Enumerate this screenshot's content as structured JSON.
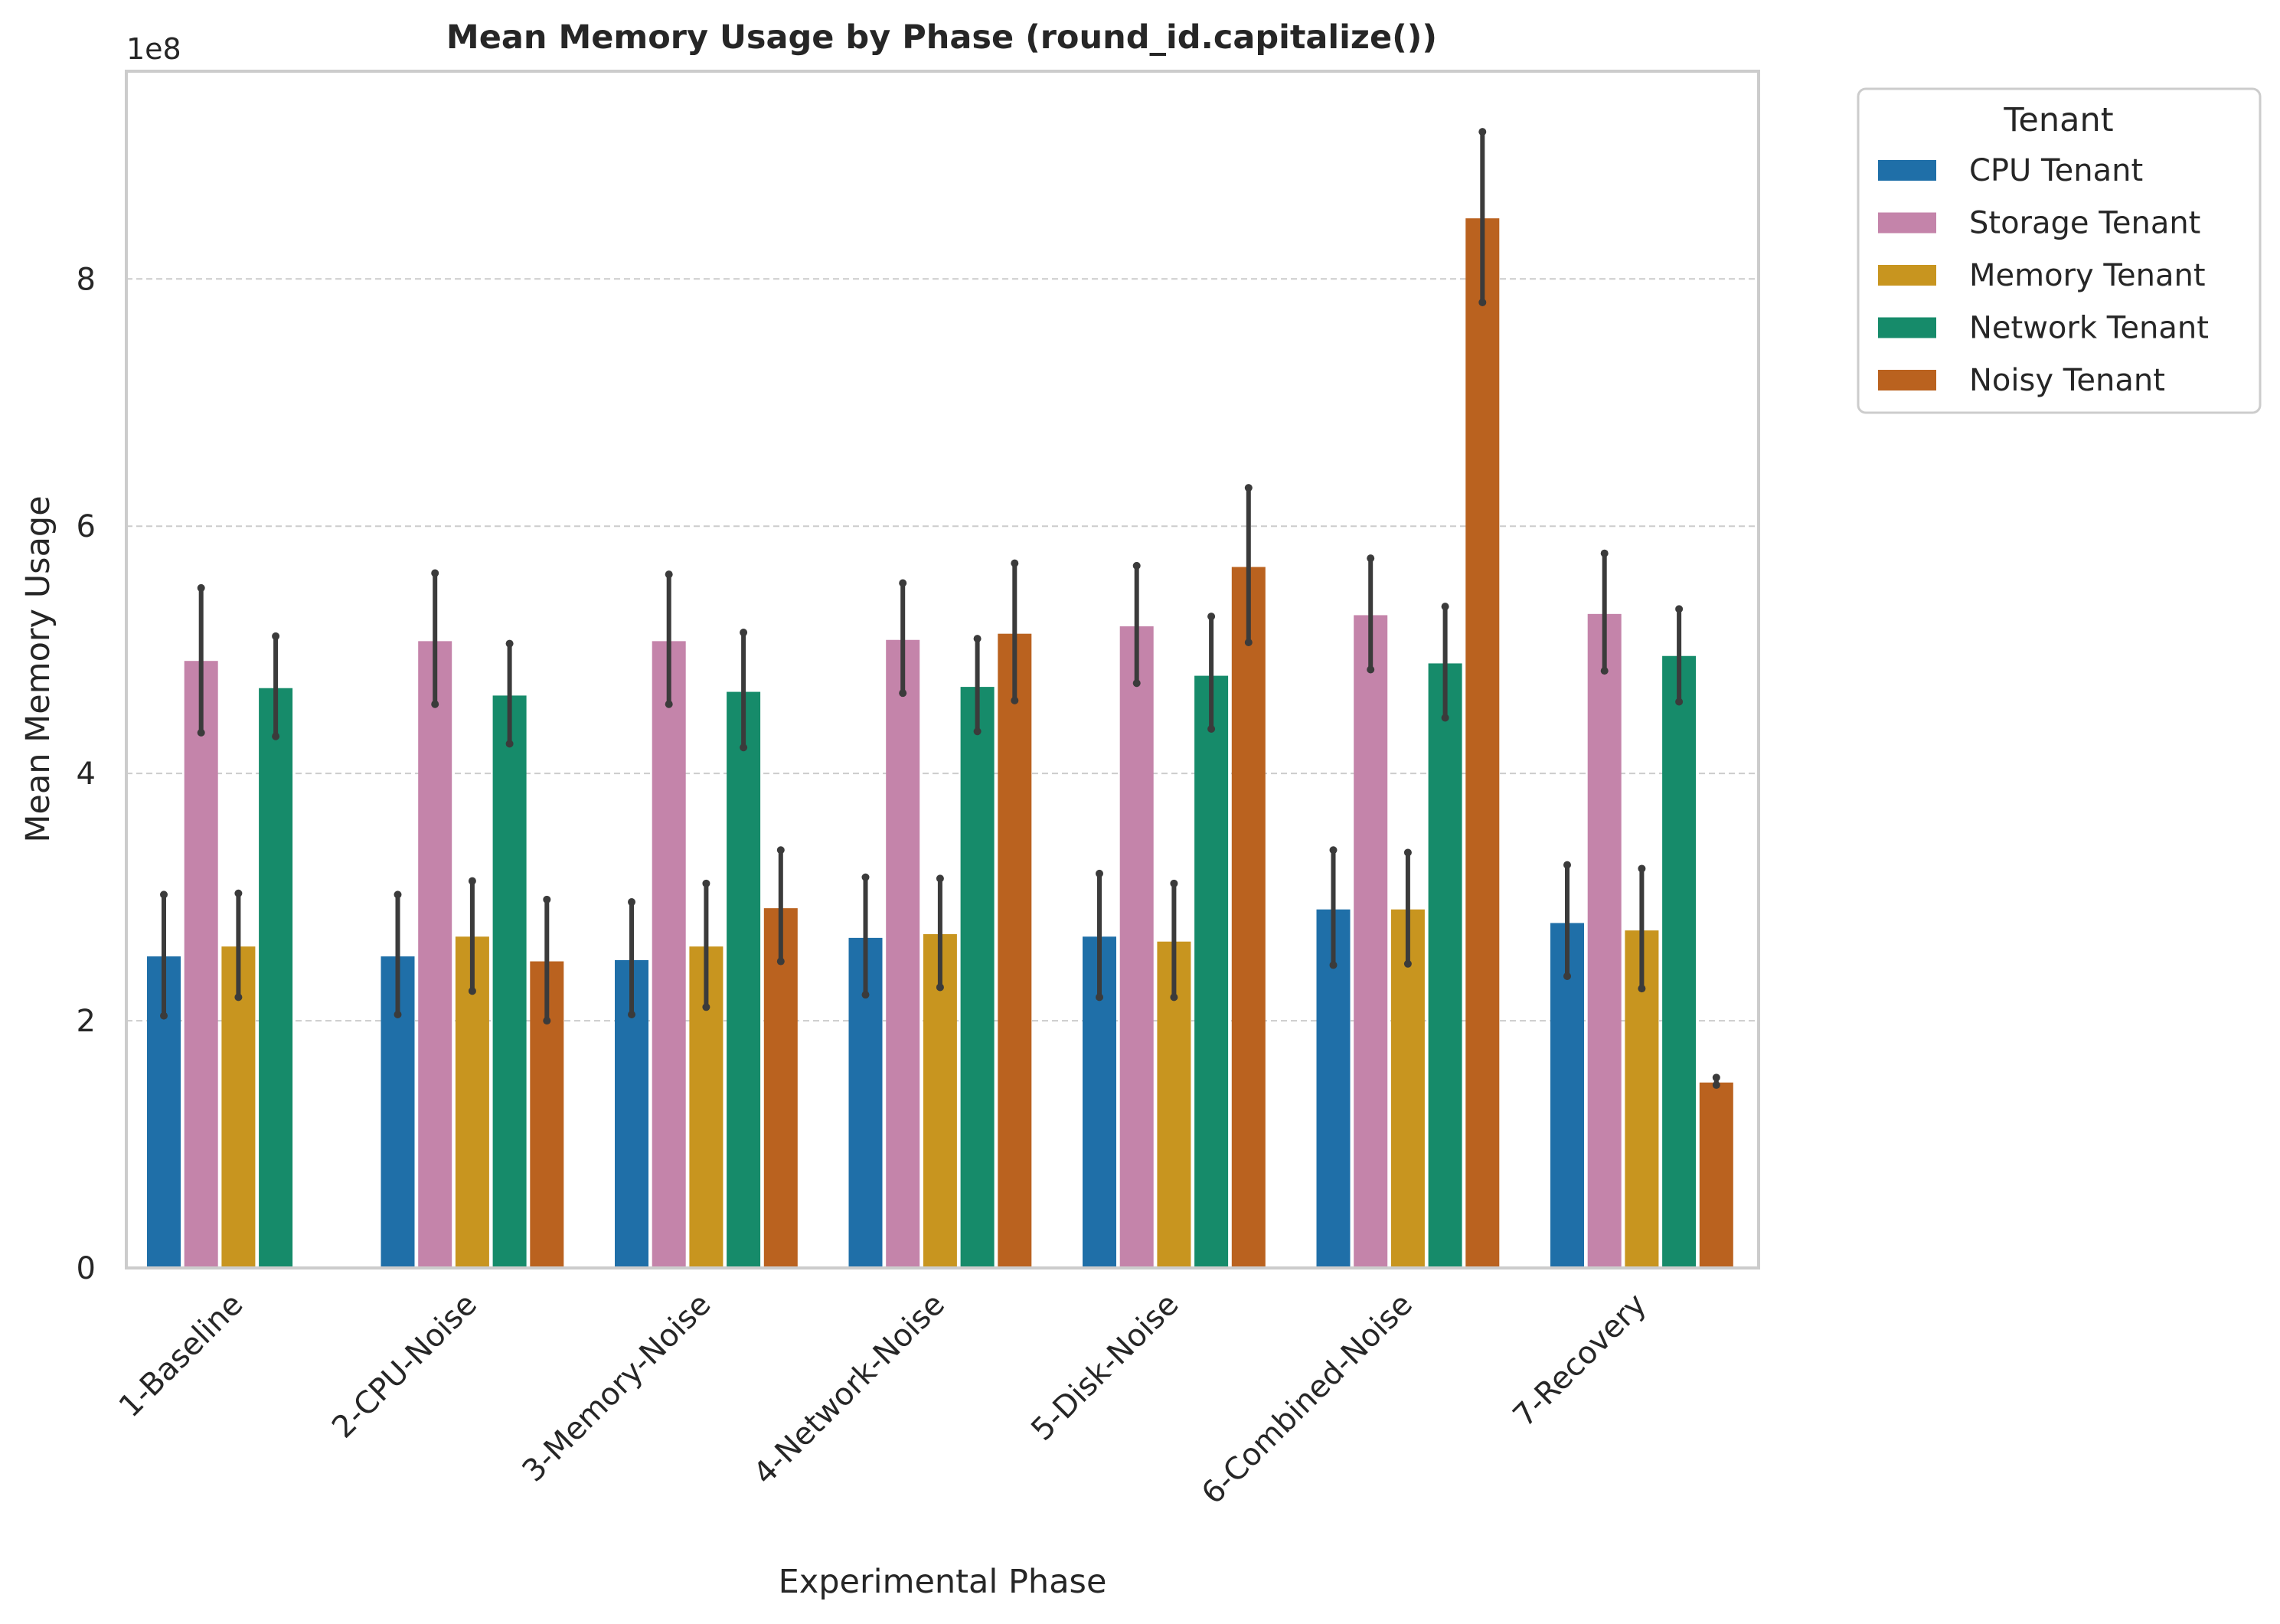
{
  "chart_data": {
    "type": "bar",
    "title": "Mean Memory Usage by Phase (round_id.capitalize())",
    "xlabel": "Experimental Phase",
    "ylabel": "Mean Memory Usage",
    "y_offset_label": "1e8",
    "ylim": [
      0,
      9.68
    ],
    "y_ticks": [
      "0",
      "2",
      "4",
      "6",
      "8"
    ],
    "y_tick_values": [
      0,
      2,
      4,
      6,
      8
    ],
    "grid": "horizontal dashed",
    "legend_title": "Tenant",
    "legend_position": "outside upper-right",
    "categories": [
      "1-Baseline",
      "2-CPU-Noise",
      "3-Memory-Noise",
      "4-Network-Noise",
      "5-Disk-Noise",
      "6-Combined-Noise",
      "7-Recovery"
    ],
    "series": [
      {
        "name": "CPU Tenant",
        "color": "#1f6fa8",
        "values": [
          2.52,
          2.52,
          2.49,
          2.67,
          2.68,
          2.9,
          2.79
        ],
        "err_low": [
          2.04,
          2.05,
          2.05,
          2.21,
          2.19,
          2.45,
          2.36
        ],
        "err_high": [
          3.02,
          3.02,
          2.96,
          3.16,
          3.19,
          3.38,
          3.26
        ]
      },
      {
        "name": "Storage Tenant",
        "color": "#c484aa",
        "values": [
          4.91,
          5.07,
          5.07,
          5.08,
          5.19,
          5.28,
          5.29
        ],
        "err_low": [
          4.33,
          4.56,
          4.56,
          4.65,
          4.73,
          4.84,
          4.83
        ],
        "err_high": [
          5.5,
          5.62,
          5.61,
          5.54,
          5.68,
          5.74,
          5.78
        ]
      },
      {
        "name": "Memory Tenant",
        "color": "#c8951f",
        "values": [
          2.6,
          2.68,
          2.6,
          2.7,
          2.64,
          2.9,
          2.73
        ],
        "err_low": [
          2.19,
          2.24,
          2.11,
          2.27,
          2.19,
          2.46,
          2.26
        ],
        "err_high": [
          3.03,
          3.13,
          3.11,
          3.15,
          3.11,
          3.36,
          3.23
        ]
      },
      {
        "name": "Network Tenant",
        "color": "#168b6a",
        "values": [
          4.69,
          4.63,
          4.66,
          4.7,
          4.79,
          4.89,
          4.95
        ],
        "err_low": [
          4.3,
          4.24,
          4.21,
          4.34,
          4.36,
          4.45,
          4.58
        ],
        "err_high": [
          5.11,
          5.05,
          5.14,
          5.09,
          5.27,
          5.35,
          5.33
        ]
      },
      {
        "name": "Noisy Tenant",
        "color": "#ba621f",
        "values": [
          null,
          2.48,
          2.91,
          5.13,
          5.67,
          8.49,
          1.5
        ],
        "err_low": [
          null,
          2.0,
          2.48,
          4.59,
          5.06,
          7.81,
          1.48
        ],
        "err_high": [
          null,
          2.98,
          3.38,
          5.7,
          6.31,
          9.19,
          1.54
        ]
      }
    ]
  }
}
